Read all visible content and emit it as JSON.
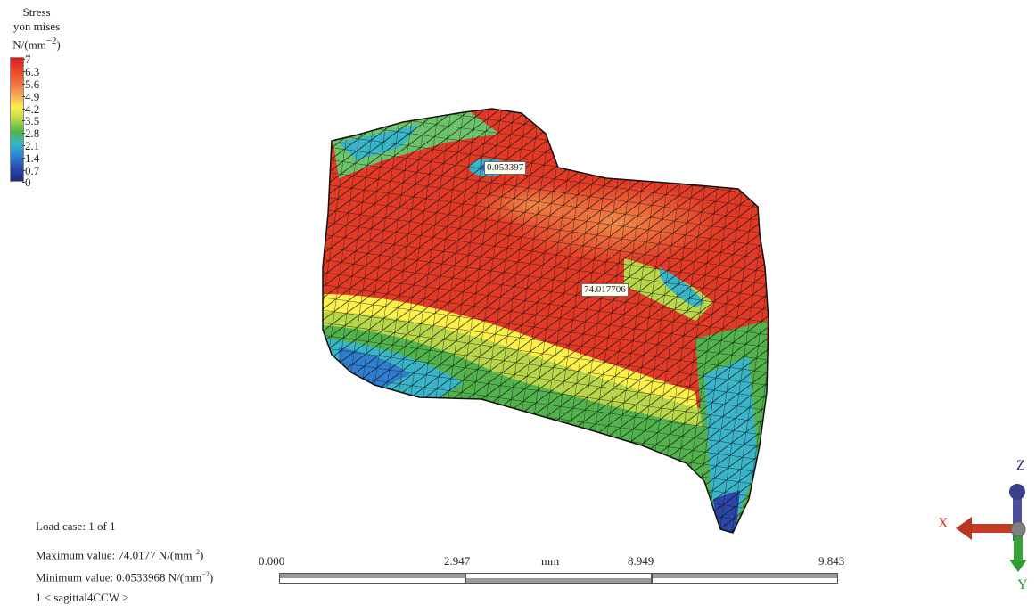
{
  "legend": {
    "title_line1": "Stress",
    "title_line2": "yon mises",
    "title_line3": "N/(mm",
    "title_exp": "−2",
    "title_close": ")",
    "ticks": [
      "7",
      "6.3",
      "5.6",
      "4.9",
      "4.2",
      "3.5",
      "2.8",
      "2.1",
      "1.4",
      "0.7",
      "0"
    ]
  },
  "probes": {
    "min_label": "0.053397",
    "max_label": "74.017706"
  },
  "info": {
    "load_case": "Load case: 1 of 1",
    "max_prefix": "Maximum value: 74.0177 N/(mm",
    "max_exp": "−2",
    "max_suffix": ")",
    "min_prefix": "Minimum value: 0.0533968 N/(mm",
    "min_exp": "−2",
    "min_suffix": ")",
    "view": "1 < sagittal4CCW >"
  },
  "scale_bar": {
    "labels": [
      "0.000",
      "2.947",
      "mm",
      "8.949",
      "9.843"
    ]
  },
  "triad": {
    "x": "X",
    "y": "Y",
    "z": "Z"
  },
  "colors": {
    "high": "#e23a26",
    "mid": "#f6e84b",
    "low_green": "#4fb24c",
    "low_blue": "#2e7fd0",
    "x_axis": "#c43a1f",
    "y_axis": "#2f9b2f",
    "z_axis": "#2a3183"
  }
}
